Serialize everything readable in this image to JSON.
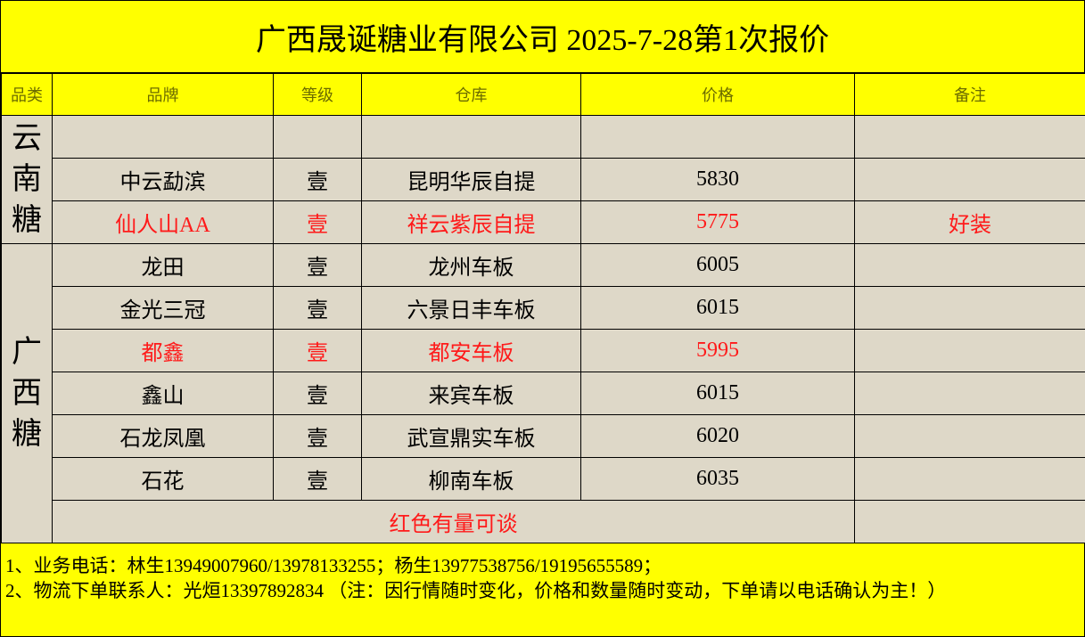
{
  "title": "广西晟诞糖业有限公司   2025-7-28第1次报价",
  "headers": [
    "品类",
    "品牌",
    "等级",
    "仓库",
    "价格",
    "备注"
  ],
  "categories": [
    {
      "label": [
        "云",
        "南",
        "糖"
      ]
    },
    {
      "label": [
        "广",
        "西",
        "糖"
      ]
    }
  ],
  "rows": [
    {
      "brand": "",
      "grade": "",
      "warehouse": "",
      "price": "",
      "note": "",
      "red": false
    },
    {
      "brand": "中云勐滨",
      "grade": "壹",
      "warehouse": "昆明华辰自提",
      "price": "5830",
      "note": "",
      "red": false
    },
    {
      "brand": "仙人山AA",
      "grade": "壹",
      "warehouse": "祥云紫辰自提",
      "price": "5775",
      "note": "好装",
      "red": true
    },
    {
      "brand": "龙田",
      "grade": "壹",
      "warehouse": "龙州车板",
      "price": "6005",
      "note": "",
      "red": false
    },
    {
      "brand": "金光三冠",
      "grade": "壹",
      "warehouse": "六景日丰车板",
      "price": "6015",
      "note": "",
      "red": false
    },
    {
      "brand": "都鑫",
      "grade": "壹",
      "warehouse": "都安车板",
      "price": "5995",
      "note": "",
      "red": true
    },
    {
      "brand": "鑫山",
      "grade": "壹",
      "warehouse": "来宾车板",
      "price": "6015",
      "note": "",
      "red": false
    },
    {
      "brand": "石龙凤凰",
      "grade": "壹",
      "warehouse": "武宣鼎实车板",
      "price": "6020",
      "note": "",
      "red": false
    },
    {
      "brand": "石花",
      "grade": "壹",
      "warehouse": "柳南车板",
      "price": "6035",
      "note": "",
      "red": false
    }
  ],
  "remark": "红色有量可谈",
  "footer": {
    "line1": "1、业务电话：林生13949007960/13978133255；杨生13977538756/19195655589；",
    "line2": "2、物流下单联系人：光烜13397892834    （注：因行情随时变化，价格和数量随时变动，下单请以电话确认为主！）"
  },
  "colors": {
    "header_bg": "#ffff00",
    "cell_bg": "#ded8c8",
    "highlight_text": "#ff1a1a"
  }
}
